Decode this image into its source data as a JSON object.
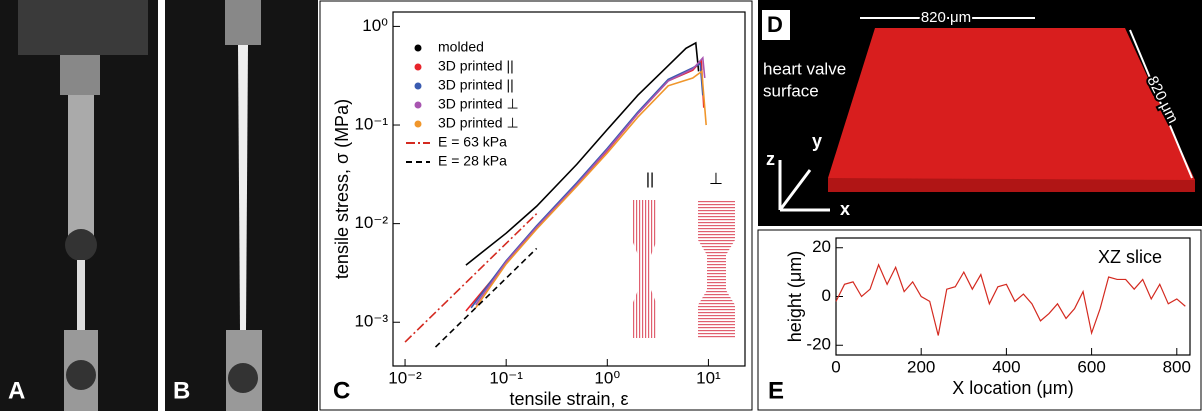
{
  "panels": {
    "A": "A",
    "B": "B",
    "C": "C",
    "D": "D",
    "E": "E"
  },
  "panel_d": {
    "width_label": "820 μm",
    "depth_label": "820 μm",
    "caption": [
      "heart valve",
      "surface"
    ],
    "axes": {
      "z": "z",
      "y": "y",
      "x": "x"
    }
  },
  "chart_data": [
    {
      "type": "line",
      "xlabel": "tensile strain, ε",
      "ylabel": "tensile stress, σ (MPa)",
      "xlog": true,
      "ylog": true,
      "xlim": [
        0.0076,
        23
      ],
      "ylim": [
        0.00036,
        1.4
      ],
      "xticks": [
        {
          "value": 0.01,
          "label": "10⁻²"
        },
        {
          "value": 0.1,
          "label": "10⁻¹"
        },
        {
          "value": 1,
          "label": "10⁰"
        },
        {
          "value": 10,
          "label": "10¹"
        }
      ],
      "yticks": [
        {
          "value": 0.001,
          "label": "10⁻³"
        },
        {
          "value": 0.01,
          "label": "10⁻²"
        },
        {
          "value": 0.1,
          "label": "10⁻¹"
        },
        {
          "value": 1,
          "label": "10⁰"
        }
      ],
      "annotations": [
        "||",
        "⊥"
      ],
      "series": [
        {
          "name": "molded",
          "color": "#000000",
          "linestyle": "solid",
          "x": [
            0.04,
            0.1,
            0.2,
            0.5,
            1,
            2,
            4,
            6,
            7.5,
            8
          ],
          "values": [
            0.0038,
            0.008,
            0.015,
            0.04,
            0.09,
            0.2,
            0.4,
            0.6,
            0.68,
            0.35
          ]
        },
        {
          "name": "3D printed ||",
          "color": "#e8242b",
          "linestyle": "solid",
          "x": [
            0.04,
            0.1,
            0.2,
            0.5,
            1,
            2,
            4,
            7,
            8.5,
            9
          ],
          "values": [
            0.0013,
            0.004,
            0.009,
            0.025,
            0.055,
            0.13,
            0.28,
            0.36,
            0.45,
            0.15
          ]
        },
        {
          "name": "3D printed ||",
          "color": "#3a5bb0",
          "linestyle": "solid",
          "x": [
            0.045,
            0.1,
            0.2,
            0.5,
            1,
            2,
            4,
            7,
            8.3,
            8.8
          ],
          "values": [
            0.0014,
            0.0042,
            0.0095,
            0.026,
            0.058,
            0.135,
            0.29,
            0.38,
            0.42,
            0.2
          ]
        },
        {
          "name": "3D printed ⊥",
          "color": "#a855b0",
          "linestyle": "solid",
          "x": [
            0.05,
            0.1,
            0.2,
            0.5,
            1,
            2,
            4,
            7,
            8.8,
            9.2
          ],
          "values": [
            0.0015,
            0.0041,
            0.0092,
            0.025,
            0.056,
            0.13,
            0.28,
            0.37,
            0.48,
            0.3
          ]
        },
        {
          "name": "3D printed ⊥",
          "color": "#f0962b",
          "linestyle": "solid",
          "x": [
            0.05,
            0.1,
            0.2,
            0.5,
            1,
            2,
            4,
            7,
            8.6,
            9.5
          ],
          "values": [
            0.0014,
            0.0039,
            0.0088,
            0.024,
            0.052,
            0.12,
            0.25,
            0.3,
            0.35,
            0.1
          ]
        },
        {
          "name": "E = 63 kPa",
          "color": "#d42a20",
          "linestyle": "dashdot",
          "x": [
            0.01,
            0.2
          ],
          "values": [
            0.00063,
            0.0126
          ]
        },
        {
          "name": "E = 28 kPa",
          "color": "#000000",
          "linestyle": "dashed",
          "x": [
            0.02,
            0.2
          ],
          "values": [
            0.00056,
            0.0056
          ]
        }
      ]
    },
    {
      "type": "line",
      "xlabel": "X location (μm)",
      "ylabel": "height (μm)",
      "annotation": "XZ slice",
      "xlim": [
        0,
        831
      ],
      "ylim": [
        -24,
        24
      ],
      "xticks": [
        0,
        200,
        400,
        600,
        800
      ],
      "yticks": [
        -20,
        0,
        20
      ],
      "x": [
        0,
        20,
        40,
        60,
        80,
        100,
        120,
        140,
        160,
        180,
        200,
        220,
        240,
        260,
        280,
        300,
        320,
        340,
        360,
        380,
        400,
        420,
        440,
        460,
        480,
        500,
        520,
        540,
        560,
        580,
        600,
        620,
        640,
        660,
        680,
        700,
        720,
        740,
        760,
        780,
        800,
        820
      ],
      "series": [
        {
          "color": "#d42a20",
          "values": [
            -2,
            5,
            6,
            0,
            3,
            13,
            5,
            12,
            2,
            6,
            0,
            -2,
            -16,
            3,
            4,
            10,
            3,
            9,
            -3,
            4,
            5,
            -2,
            1,
            -3,
            -10,
            -7,
            -3,
            -9,
            -5,
            2,
            -15,
            -5,
            8,
            7,
            7,
            3,
            7,
            -1,
            5,
            -3,
            -1,
            -4
          ]
        }
      ]
    }
  ]
}
